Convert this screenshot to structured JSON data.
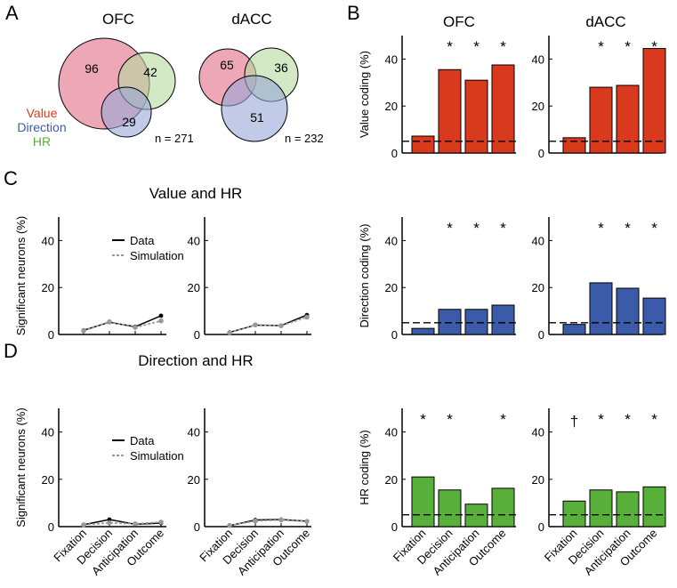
{
  "colors": {
    "value": "#d93a1e",
    "direction": "#3b5aa8",
    "hr": "#58b03a",
    "value_circle": "#e88a9d",
    "direction_circle": "#97a6d6",
    "hr_circle": "#b5d99c",
    "sim": "#999999"
  },
  "panels": {
    "a": "A",
    "b": "B",
    "c": "C",
    "d": "D"
  },
  "venn": {
    "legend": {
      "value": "Value",
      "direction": "Direction",
      "hr": "HR"
    },
    "ofc": {
      "title": "OFC",
      "value": "96",
      "hr": "42",
      "direction": "29",
      "n": "n = 271"
    },
    "dacc": {
      "title": "dACC",
      "value": "65",
      "hr": "36",
      "direction": "51",
      "n": "n = 232"
    }
  },
  "line_titles": {
    "c": "Value and HR",
    "d": "Direction and HR"
  },
  "legend": {
    "data": "Data",
    "simulation": "Simulation"
  },
  "chart_data": [
    {
      "id": "C-OFC",
      "type": "line",
      "title": "Value and HR",
      "region": "OFC",
      "categories": [
        "Fixation",
        "Decision",
        "Anticipation",
        "Outcome"
      ],
      "ylabel": "Significant neurons (%)",
      "ylim": [
        0,
        50
      ],
      "yticks": [
        0,
        20,
        40
      ],
      "series": [
        {
          "name": "Data",
          "values": [
            1.8,
            5.2,
            3.3,
            8.0
          ]
        },
        {
          "name": "Simulation",
          "values": [
            1.6,
            5.4,
            3.0,
            5.8
          ]
        }
      ]
    },
    {
      "id": "C-dACC",
      "type": "line",
      "title": "Value and HR",
      "region": "dACC",
      "categories": [
        "Fixation",
        "Decision",
        "Anticipation",
        "Outcome"
      ],
      "ylim": [
        0,
        50
      ],
      "yticks": [
        0,
        20,
        40
      ],
      "series": [
        {
          "name": "Data",
          "values": [
            0.9,
            4.0,
            3.8,
            8.3
          ]
        },
        {
          "name": "Simulation",
          "values": [
            0.8,
            4.1,
            3.7,
            7.4
          ]
        }
      ]
    },
    {
      "id": "D-OFC",
      "type": "line",
      "title": "Direction and HR",
      "region": "OFC",
      "categories": [
        "Fixation",
        "Decision",
        "Anticipation",
        "Outcome"
      ],
      "ylabel": "Significant neurons (%)",
      "ylim": [
        0,
        50
      ],
      "yticks": [
        0,
        20,
        40
      ],
      "series": [
        {
          "name": "Data",
          "values": [
            0.8,
            3.0,
            1.0,
            1.5
          ]
        },
        {
          "name": "Simulation",
          "values": [
            0.8,
            1.6,
            1.2,
            1.9
          ]
        }
      ]
    },
    {
      "id": "D-dACC",
      "type": "line",
      "title": "Direction and HR",
      "region": "dACC",
      "categories": [
        "Fixation",
        "Decision",
        "Anticipation",
        "Outcome"
      ],
      "ylim": [
        0,
        50
      ],
      "yticks": [
        0,
        20,
        40
      ],
      "series": [
        {
          "name": "Data",
          "values": [
            0.4,
            2.8,
            3.0,
            2.3
          ]
        },
        {
          "name": "Simulation",
          "values": [
            0.5,
            2.4,
            2.8,
            2.2
          ]
        }
      ]
    },
    {
      "id": "B-Value-OFC",
      "type": "bar",
      "title": "OFC",
      "color_key": "value",
      "categories": [
        "Fixation",
        "Decision",
        "Anticipation",
        "Outcome"
      ],
      "values": [
        7.2,
        35.5,
        31.0,
        37.5
      ],
      "marks": [
        "",
        "*",
        "*",
        "*"
      ],
      "chance": 5,
      "ylabel": "Value coding (%)",
      "ylim": [
        0,
        50
      ],
      "yticks": [
        0,
        20,
        40
      ]
    },
    {
      "id": "B-Value-dACC",
      "type": "bar",
      "title": "dACC",
      "color_key": "value",
      "categories": [
        "Fixation",
        "Decision",
        "Anticipation",
        "Outcome"
      ],
      "values": [
        6.5,
        28.0,
        28.8,
        44.5
      ],
      "marks": [
        "",
        "*",
        "*",
        "*"
      ],
      "chance": 5,
      "ylim": [
        0,
        50
      ],
      "yticks": [
        0,
        20,
        40
      ]
    },
    {
      "id": "B-Direction-OFC",
      "type": "bar",
      "color_key": "direction",
      "categories": [
        "Fixation",
        "Decision",
        "Anticipation",
        "Outcome"
      ],
      "values": [
        2.6,
        10.7,
        10.7,
        12.5
      ],
      "marks": [
        "",
        "*",
        "*",
        "*"
      ],
      "chance": 5,
      "ylabel": "Direction coding (%)",
      "ylim": [
        0,
        50
      ],
      "yticks": [
        0,
        20,
        40
      ]
    },
    {
      "id": "B-Direction-dACC",
      "type": "bar",
      "color_key": "direction",
      "categories": [
        "Fixation",
        "Decision",
        "Anticipation",
        "Outcome"
      ],
      "values": [
        4.3,
        22.0,
        19.7,
        15.5
      ],
      "marks": [
        "",
        "*",
        "*",
        "*"
      ],
      "chance": 5,
      "ylim": [
        0,
        50
      ],
      "yticks": [
        0,
        20,
        40
      ]
    },
    {
      "id": "B-HR-OFC",
      "type": "bar",
      "color_key": "hr",
      "categories": [
        "Fixation",
        "Decision",
        "Anticipation",
        "Outcome"
      ],
      "values": [
        21.0,
        15.5,
        9.5,
        16.2
      ],
      "marks": [
        "*",
        "*",
        "",
        "*"
      ],
      "chance": 5,
      "ylabel": "HR coding (%)",
      "ylim": [
        0,
        50
      ],
      "yticks": [
        0,
        20,
        40
      ]
    },
    {
      "id": "B-HR-dACC",
      "type": "bar",
      "color_key": "hr",
      "categories": [
        "Fixation",
        "Decision",
        "Anticipation",
        "Outcome"
      ],
      "values": [
        10.8,
        15.5,
        14.7,
        16.8
      ],
      "marks": [
        "†",
        "*",
        "*",
        "*"
      ],
      "chance": 5,
      "ylim": [
        0,
        50
      ],
      "yticks": [
        0,
        20,
        40
      ]
    }
  ]
}
